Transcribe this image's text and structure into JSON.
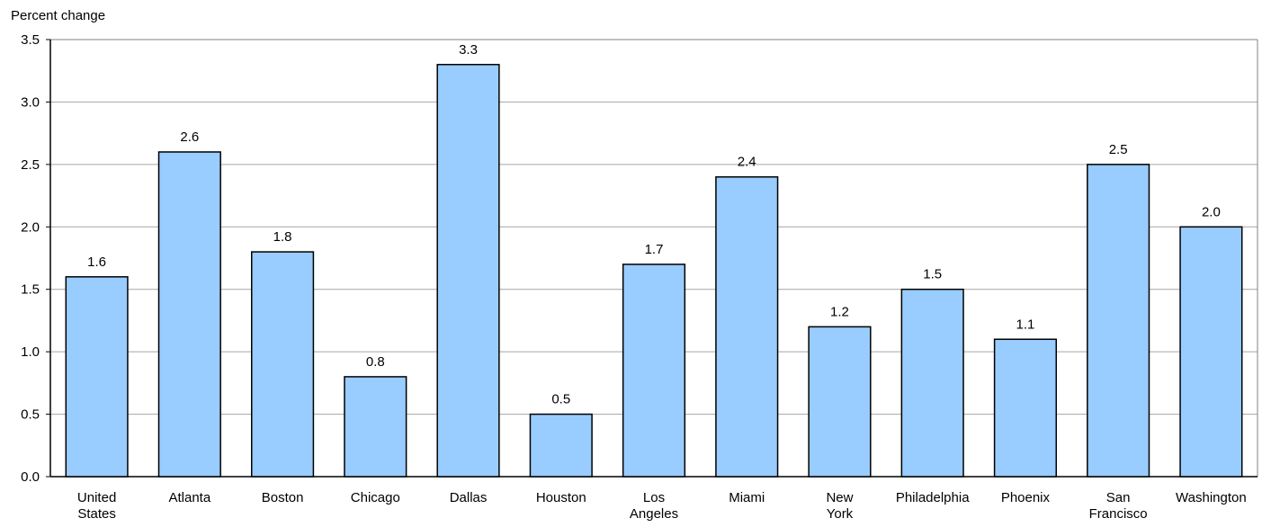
{
  "chart_data": {
    "type": "bar",
    "ylabel": "Percent change",
    "xlabel": "",
    "title": "",
    "ylim": [
      0,
      3.5
    ],
    "yticks": [
      "0.0",
      "0.5",
      "1.0",
      "1.5",
      "2.0",
      "2.5",
      "3.0",
      "3.5"
    ],
    "grid": true,
    "categories": [
      [
        "United",
        "States"
      ],
      [
        "Atlanta"
      ],
      [
        "Boston"
      ],
      [
        "Chicago"
      ],
      [
        "Dallas"
      ],
      [
        "Houston"
      ],
      [
        "Los",
        "Angeles"
      ],
      [
        "Miami"
      ],
      [
        "New",
        "York"
      ],
      [
        "Philadelphia"
      ],
      [
        "Phoenix"
      ],
      [
        "San",
        "Francisco"
      ],
      [
        "Washington"
      ]
    ],
    "values": [
      1.6,
      2.6,
      1.8,
      0.8,
      3.3,
      0.5,
      1.7,
      2.4,
      1.2,
      1.5,
      1.1,
      2.5,
      2.0
    ],
    "data_labels": [
      "1.6",
      "2.6",
      "1.8",
      "0.8",
      "3.3",
      "0.5",
      "1.7",
      "2.4",
      "1.2",
      "1.5",
      "1.1",
      "2.5",
      "2.0"
    ],
    "colors": {
      "bar_fill": "#99CCFF",
      "bar_stroke": "#000000",
      "grid": "#A6A6A6",
      "frame": "#808080",
      "axis": "#000000"
    }
  }
}
